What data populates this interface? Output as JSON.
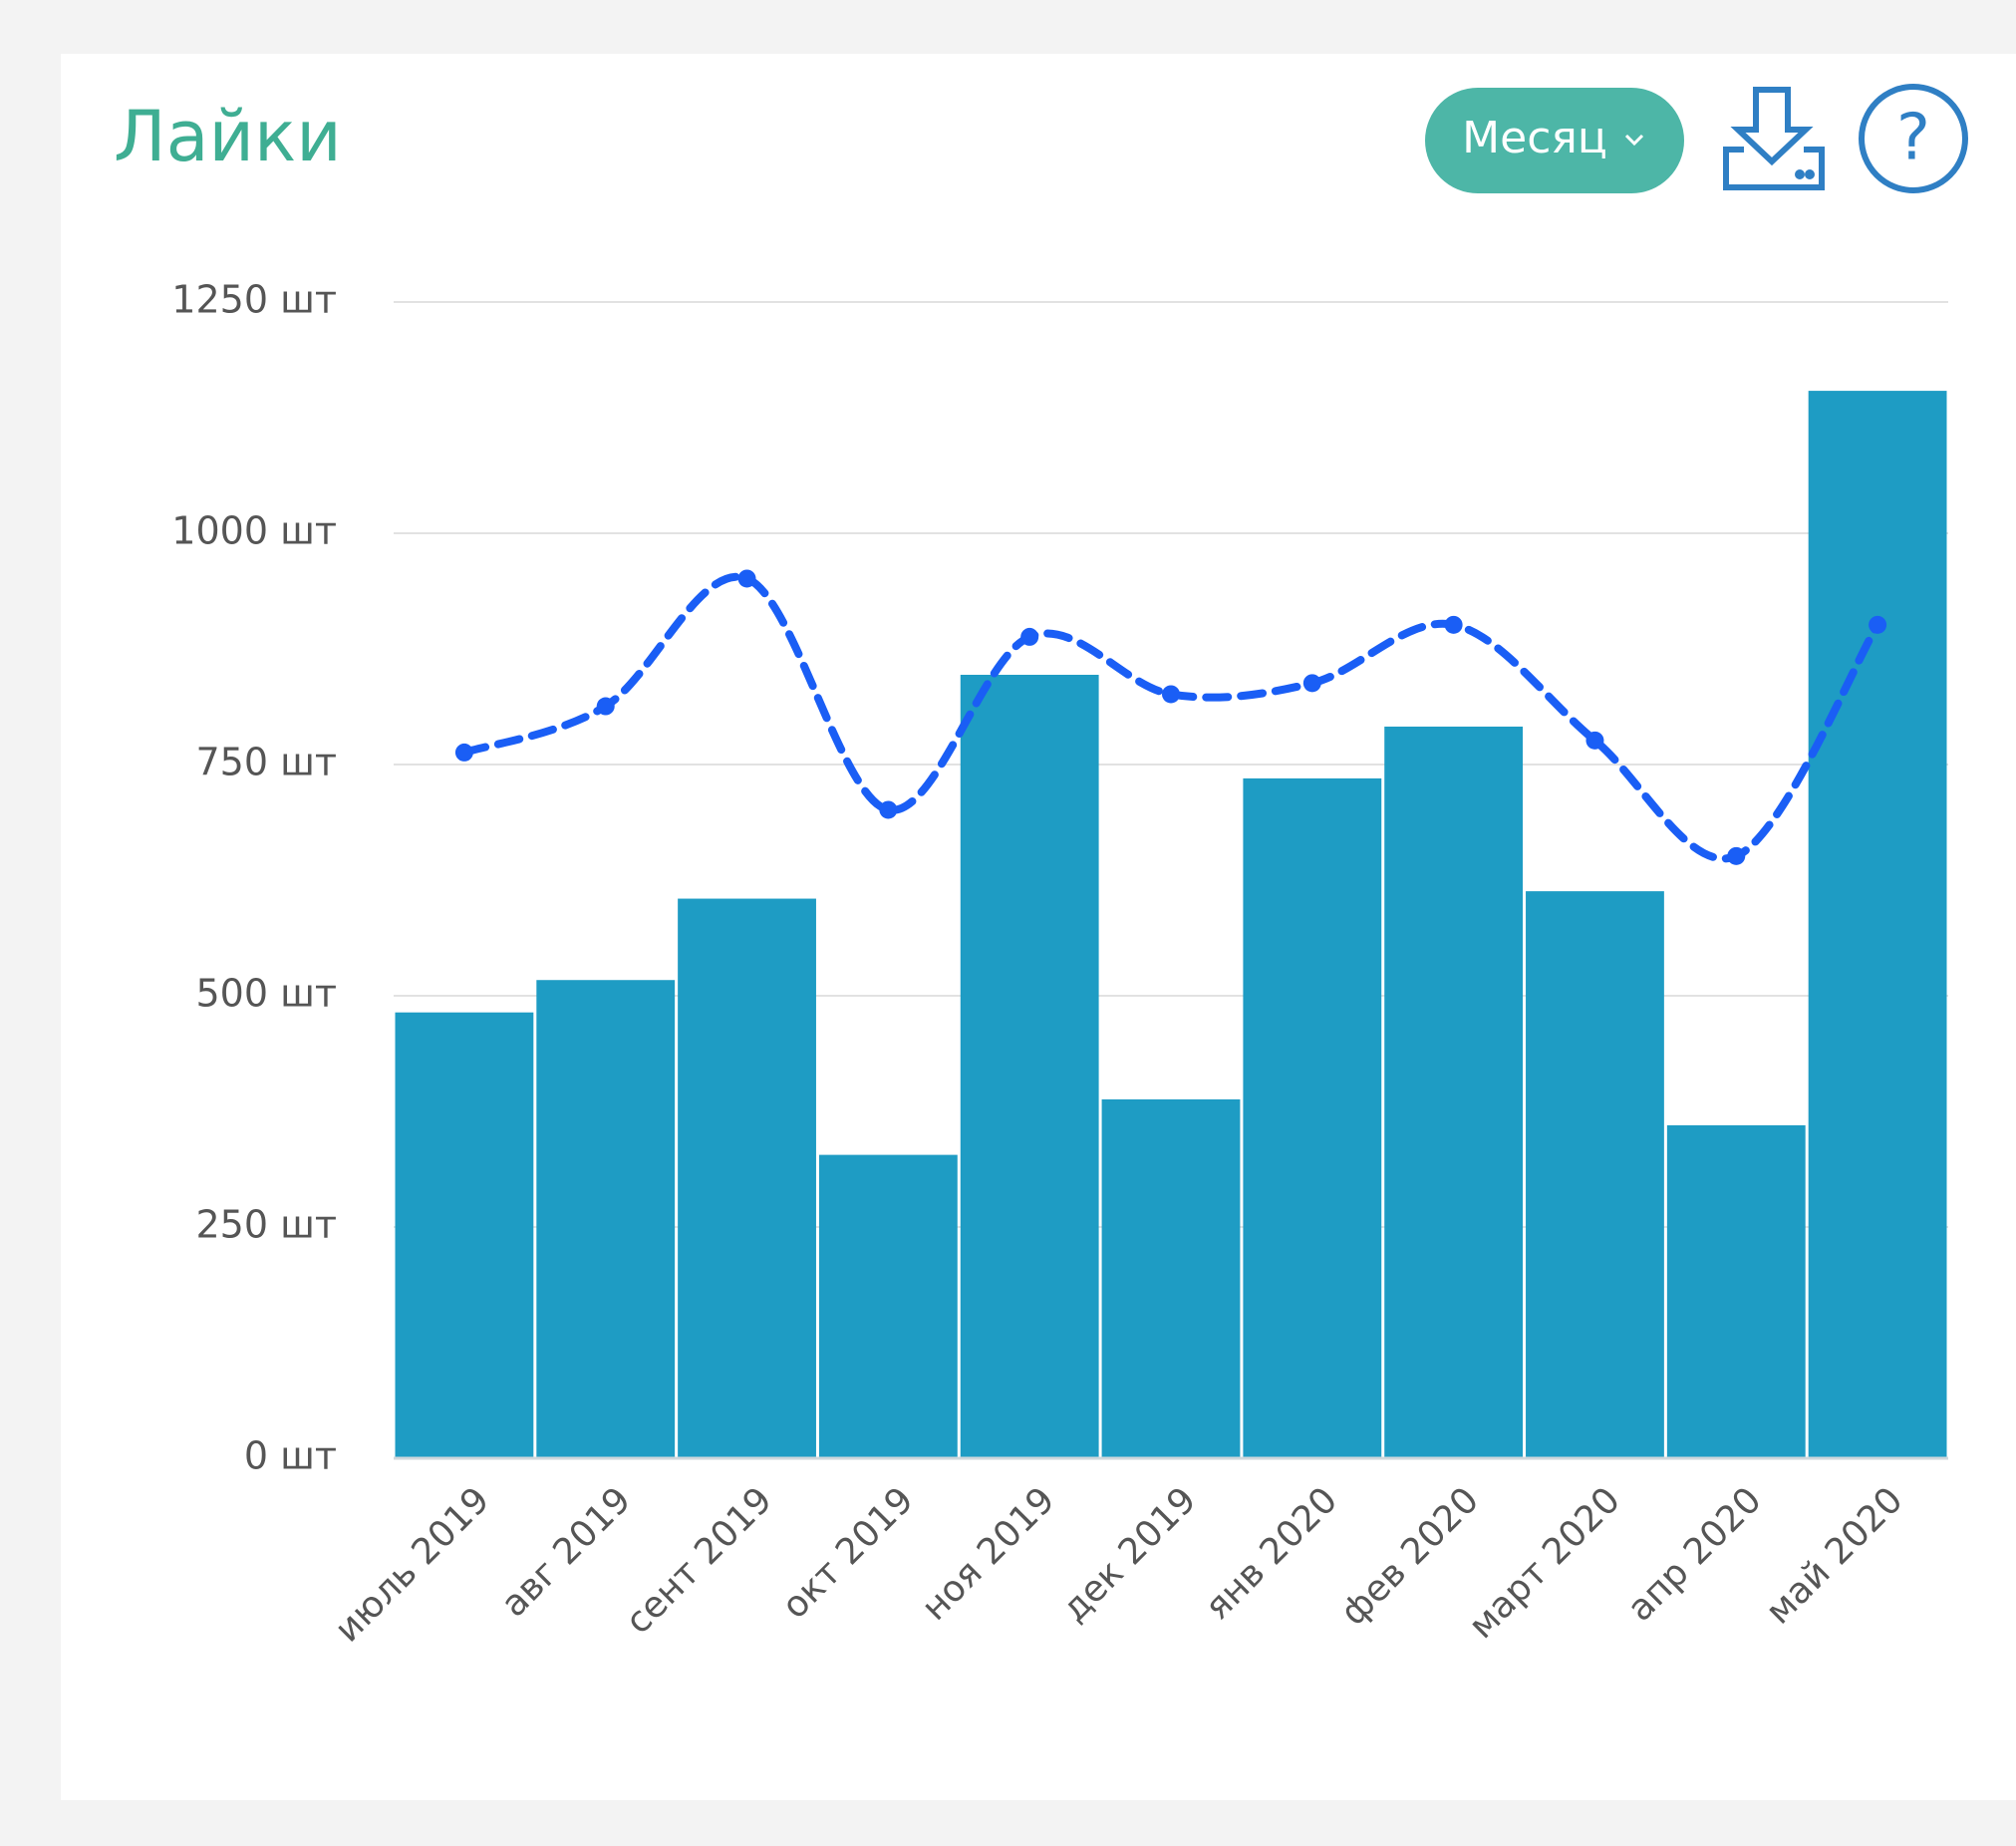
{
  "header": {
    "title": "Лайки",
    "period_button": "Месяц"
  },
  "chart_data": {
    "type": "bar",
    "categories": [
      "июль 2019",
      "авг 2019",
      "сент 2019",
      "окт 2019",
      "ноя 2019",
      "дек 2019",
      "янв 2020",
      "фев 2020",
      "март 2020",
      "апр 2020",
      "май 2020"
    ],
    "series": [
      {
        "type": "bar",
        "color": "#1e9cc4",
        "values": [
          482,
          517,
          605,
          328,
          847,
          388,
          735,
          791,
          613,
          360,
          1154
        ]
      },
      {
        "type": "line",
        "color": "#1a5ef5",
        "dashed": true,
        "smooth": true,
        "values": [
          763,
          813,
          951,
          701,
          888,
          826,
          838,
          901,
          776,
          651,
          901
        ]
      }
    ],
    "ylim": [
      0,
      1250
    ],
    "yticks": [
      {
        "value": 0,
        "label": "0 шт"
      },
      {
        "value": 250,
        "label": "250 шт"
      },
      {
        "value": 500,
        "label": "500 шт"
      },
      {
        "value": 750,
        "label": "750 шт"
      },
      {
        "value": 1000,
        "label": "1000 шт"
      },
      {
        "value": 1250,
        "label": "1250 шт"
      }
    ],
    "grid": true
  }
}
